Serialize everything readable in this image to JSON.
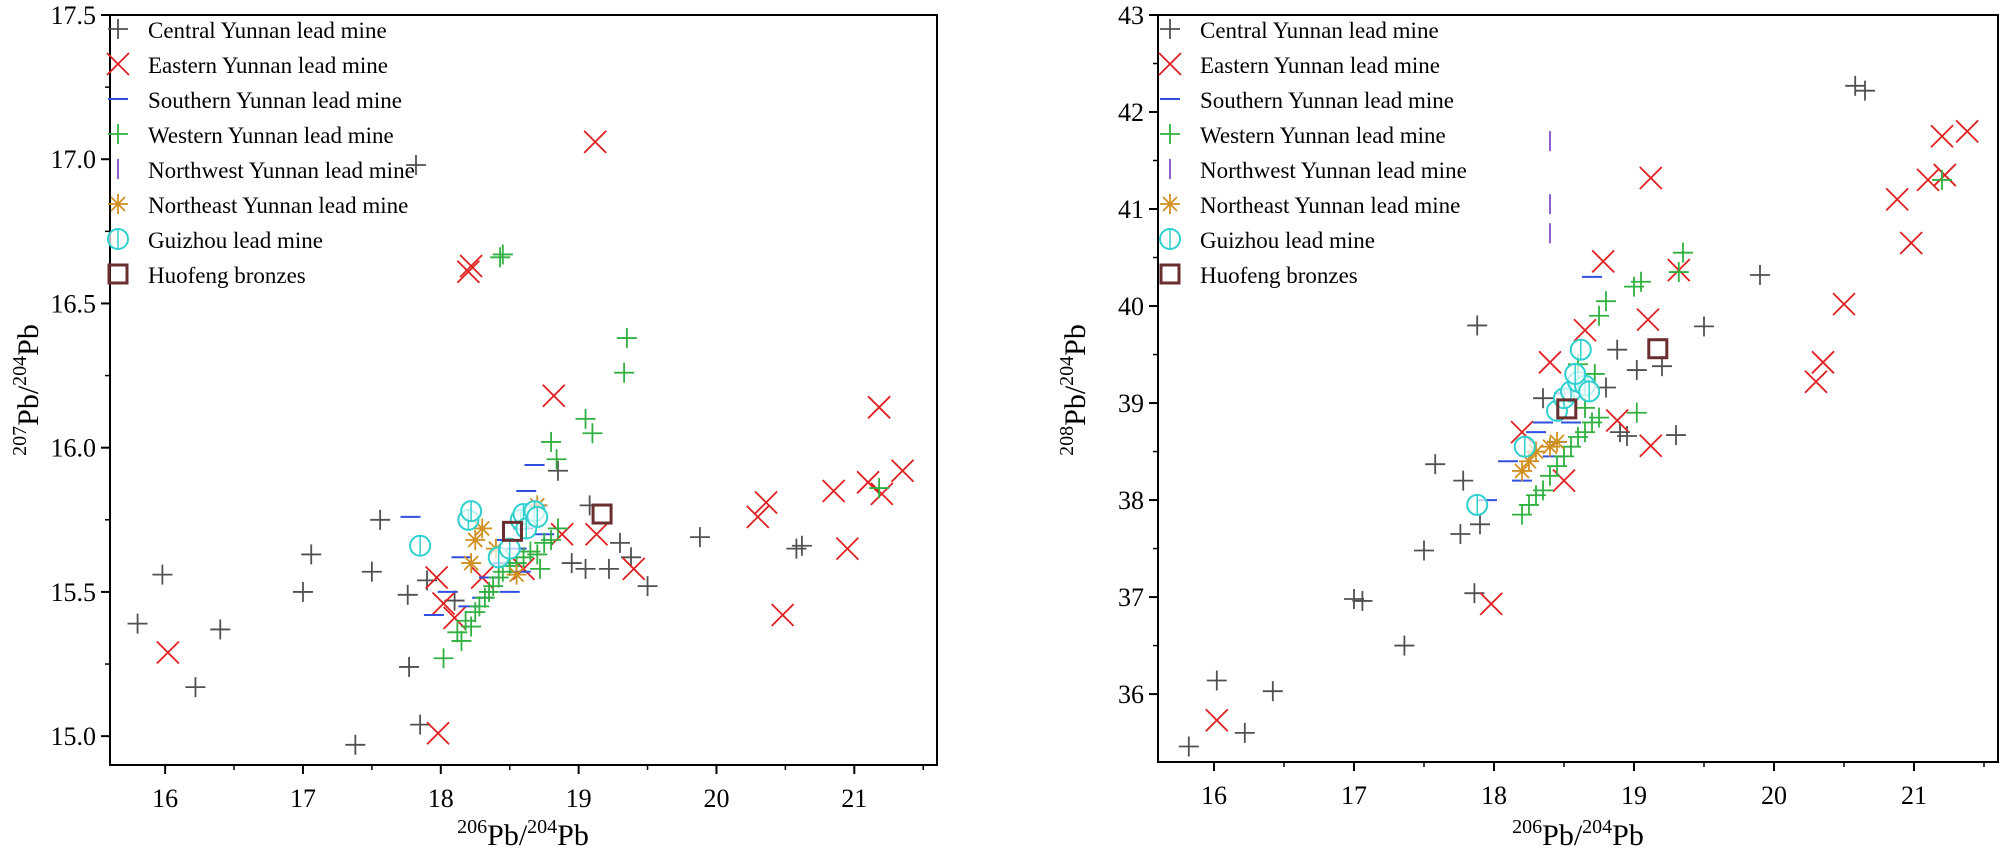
{
  "legend_colors": {
    "central": "#505050",
    "eastern": "#e02020",
    "southern": "#3050e0",
    "western": "#30b040",
    "northwest": "#9060d0",
    "northeast": "#d09020",
    "guizhou": "#30d0d0",
    "huofeng": "#6a2e2e"
  },
  "chart_data": [
    {
      "type": "scatter",
      "x_label": {
        "sup": "206",
        "base1": "Pb/",
        "sup2": "204",
        "base2": "Pb"
      },
      "y_label": {
        "sup": "207",
        "base1": "Pb/",
        "sup2": "204",
        "base2": "Pb"
      },
      "xlim": [
        15.6,
        21.6
      ],
      "ylim": [
        14.9,
        17.5
      ],
      "xticks": [
        16,
        17,
        18,
        19,
        20,
        21
      ],
      "yticks": [
        15.0,
        15.5,
        16.0,
        16.5,
        17.0,
        17.5
      ],
      "ytick_labels": [
        "15.0",
        "15.5",
        "16.0",
        "16.5",
        "17.0",
        "17.5"
      ],
      "legend_position": "top-left",
      "series": [
        {
          "key": "central",
          "name": "Central Yunnan lead mine",
          "marker": "plus",
          "color": "#505050",
          "points": [
            [
              15.8,
              15.39
            ],
            [
              15.98,
              15.56
            ],
            [
              16.22,
              15.17
            ],
            [
              16.4,
              15.37
            ],
            [
              17.0,
              15.5
            ],
            [
              17.06,
              15.63
            ],
            [
              17.5,
              15.57
            ],
            [
              17.56,
              15.75
            ],
            [
              17.38,
              14.97
            ],
            [
              17.77,
              15.24
            ],
            [
              17.76,
              15.49
            ],
            [
              17.85,
              15.04
            ],
            [
              17.82,
              16.98
            ],
            [
              17.9,
              15.54
            ],
            [
              18.1,
              15.47
            ],
            [
              18.85,
              15.92
            ],
            [
              18.95,
              15.6
            ],
            [
              19.05,
              15.58
            ],
            [
              19.08,
              15.8
            ],
            [
              19.3,
              15.67
            ],
            [
              19.38,
              15.62
            ],
            [
              19.5,
              15.52
            ],
            [
              19.88,
              15.69
            ],
            [
              20.58,
              15.65
            ],
            [
              20.62,
              15.66
            ],
            [
              19.22,
              15.58
            ]
          ]
        },
        {
          "key": "eastern",
          "name": "Eastern Yunnan lead mine",
          "marker": "x",
          "color": "#e02020",
          "points": [
            [
              16.02,
              15.29
            ],
            [
              17.98,
              15.01
            ],
            [
              17.97,
              15.55
            ],
            [
              18.02,
              15.46
            ],
            [
              18.1,
              15.41
            ],
            [
              18.22,
              16.63
            ],
            [
              18.2,
              16.61
            ],
            [
              18.3,
              15.55
            ],
            [
              18.6,
              15.58
            ],
            [
              18.82,
              16.18
            ],
            [
              18.88,
              15.7
            ],
            [
              19.12,
              17.06
            ],
            [
              19.13,
              15.7
            ],
            [
              19.4,
              15.58
            ],
            [
              20.3,
              15.76
            ],
            [
              20.36,
              15.81
            ],
            [
              20.48,
              15.42
            ],
            [
              20.85,
              15.85
            ],
            [
              20.95,
              15.65
            ],
            [
              21.1,
              15.88
            ],
            [
              21.2,
              15.84
            ],
            [
              21.18,
              16.14
            ],
            [
              21.35,
              15.92
            ]
          ]
        },
        {
          "key": "southern",
          "name": "Southern Yunnan lead mine",
          "marker": "hline",
          "color": "#3050e0",
          "points": [
            [
              17.78,
              15.76
            ],
            [
              18.05,
              15.5
            ],
            [
              18.2,
              15.45
            ],
            [
              18.35,
              15.55
            ],
            [
              18.45,
              15.6
            ],
            [
              18.5,
              15.5
            ],
            [
              18.55,
              15.65
            ],
            [
              18.6,
              15.72
            ],
            [
              18.62,
              15.85
            ],
            [
              18.68,
              15.94
            ],
            [
              18.7,
              15.8
            ],
            [
              18.75,
              15.7
            ],
            [
              18.48,
              15.68
            ],
            [
              18.58,
              15.57
            ],
            [
              18.3,
              15.48
            ],
            [
              18.15,
              15.62
            ],
            [
              17.95,
              15.42
            ]
          ]
        },
        {
          "key": "western",
          "name": "Western Yunnan lead mine",
          "marker": "plus",
          "color": "#30b040",
          "points": [
            [
              18.02,
              15.27
            ],
            [
              18.12,
              15.36
            ],
            [
              18.15,
              15.33
            ],
            [
              18.18,
              15.4
            ],
            [
              18.22,
              15.38
            ],
            [
              18.25,
              15.43
            ],
            [
              18.28,
              15.45
            ],
            [
              18.32,
              15.48
            ],
            [
              18.35,
              15.5
            ],
            [
              18.38,
              15.52
            ],
            [
              18.42,
              15.55
            ],
            [
              18.45,
              15.57
            ],
            [
              18.5,
              15.59
            ],
            [
              18.55,
              15.6
            ],
            [
              18.6,
              15.62
            ],
            [
              18.65,
              15.64
            ],
            [
              18.7,
              15.63
            ],
            [
              18.75,
              15.67
            ],
            [
              18.8,
              15.68
            ],
            [
              18.72,
              15.58
            ],
            [
              18.85,
              15.72
            ],
            [
              18.8,
              16.02
            ],
            [
              18.84,
              15.96
            ],
            [
              19.05,
              16.1
            ],
            [
              19.1,
              16.05
            ],
            [
              19.35,
              16.38
            ],
            [
              19.33,
              16.26
            ],
            [
              18.43,
              16.66
            ],
            [
              18.45,
              16.67
            ],
            [
              21.18,
              15.86
            ]
          ]
        },
        {
          "key": "northwest",
          "name": "Northwest Yunnan lead mine",
          "marker": "vline",
          "color": "#9060d0",
          "points": []
        },
        {
          "key": "northeast",
          "name": "Northeast Yunnan lead mine",
          "marker": "star",
          "color": "#d09020",
          "points": [
            [
              18.25,
              15.68
            ],
            [
              18.3,
              15.72
            ],
            [
              18.55,
              15.56
            ],
            [
              18.22,
              15.6
            ],
            [
              18.7,
              15.8
            ],
            [
              18.4,
              15.65
            ]
          ]
        },
        {
          "key": "guizhou",
          "name": "Guizhou lead mine",
          "marker": "circle",
          "color": "#30d0d0",
          "points": [
            [
              17.85,
              15.66
            ],
            [
              18.2,
              15.75
            ],
            [
              18.22,
              15.78
            ],
            [
              18.42,
              15.62
            ],
            [
              18.5,
              15.65
            ],
            [
              18.58,
              15.75
            ],
            [
              18.6,
              15.77
            ],
            [
              18.62,
              15.72
            ],
            [
              18.68,
              15.78
            ],
            [
              18.7,
              15.76
            ]
          ]
        },
        {
          "key": "huofeng",
          "name": "Huofeng bronzes",
          "marker": "square",
          "color": "#6a2e2e",
          "points": [
            [
              18.52,
              15.71
            ],
            [
              19.17,
              15.77
            ]
          ]
        }
      ]
    },
    {
      "type": "scatter",
      "x_label": {
        "sup": "206",
        "base1": "Pb/",
        "sup2": "204",
        "base2": "Pb"
      },
      "y_label": {
        "sup": "208",
        "base1": "Pb/",
        "sup2": "204",
        "base2": "Pb"
      },
      "xlim": [
        15.6,
        21.6
      ],
      "ylim": [
        35.3,
        43.0
      ],
      "xticks": [
        16,
        17,
        18,
        19,
        20,
        21
      ],
      "yticks": [
        36,
        37,
        38,
        39,
        40,
        41,
        42,
        43
      ],
      "ytick_labels": [
        "36",
        "37",
        "38",
        "39",
        "40",
        "41",
        "42",
        "43"
      ],
      "legend_position": "top-left",
      "series": [
        {
          "key": "central",
          "name": "Central Yunnan lead mine",
          "marker": "plus",
          "color": "#505050",
          "points": [
            [
              15.82,
              35.46
            ],
            [
              16.02,
              36.14
            ],
            [
              16.22,
              35.6
            ],
            [
              16.42,
              36.03
            ],
            [
              17.0,
              36.98
            ],
            [
              17.06,
              36.96
            ],
            [
              17.36,
              36.5
            ],
            [
              17.5,
              37.48
            ],
            [
              17.58,
              38.37
            ],
            [
              17.76,
              37.65
            ],
            [
              17.78,
              38.2
            ],
            [
              17.86,
              37.04
            ],
            [
              17.9,
              37.75
            ],
            [
              17.88,
              39.8
            ],
            [
              18.35,
              39.05
            ],
            [
              18.88,
              39.55
            ],
            [
              18.9,
              38.7
            ],
            [
              18.95,
              38.66
            ],
            [
              19.02,
              39.34
            ],
            [
              19.3,
              38.67
            ],
            [
              19.5,
              39.79
            ],
            [
              19.9,
              40.32
            ],
            [
              20.58,
              42.27
            ],
            [
              20.65,
              42.22
            ],
            [
              19.2,
              39.38
            ],
            [
              18.8,
              39.16
            ]
          ]
        },
        {
          "key": "eastern",
          "name": "Eastern Yunnan lead mine",
          "marker": "x",
          "color": "#e02020",
          "points": [
            [
              16.02,
              35.73
            ],
            [
              17.98,
              36.93
            ],
            [
              18.2,
              38.7
            ],
            [
              18.4,
              39.42
            ],
            [
              18.5,
              38.2
            ],
            [
              18.65,
              39.75
            ],
            [
              18.78,
              40.46
            ],
            [
              18.88,
              38.82
            ],
            [
              19.1,
              39.86
            ],
            [
              19.12,
              41.32
            ],
            [
              19.12,
              38.56
            ],
            [
              19.32,
              40.37
            ],
            [
              20.3,
              39.22
            ],
            [
              20.35,
              39.42
            ],
            [
              20.5,
              40.02
            ],
            [
              20.88,
              41.1
            ],
            [
              20.98,
              40.65
            ],
            [
              21.1,
              41.3
            ],
            [
              21.2,
              41.75
            ],
            [
              21.22,
              41.35
            ],
            [
              21.38,
              41.8
            ]
          ]
        },
        {
          "key": "southern",
          "name": "Southern Yunnan lead mine",
          "marker": "hline",
          "color": "#3050e0",
          "points": [
            [
              17.95,
              38.0
            ],
            [
              18.1,
              38.4
            ],
            [
              18.2,
              38.2
            ],
            [
              18.35,
              38.8
            ],
            [
              18.45,
              38.6
            ],
            [
              18.5,
              39.1
            ],
            [
              18.55,
              38.8
            ],
            [
              18.6,
              39.2
            ],
            [
              18.7,
              40.3
            ],
            [
              18.42,
              38.45
            ],
            [
              18.3,
              38.7
            ]
          ]
        },
        {
          "key": "western",
          "name": "Western Yunnan lead mine",
          "marker": "plus",
          "color": "#30b040",
          "points": [
            [
              18.2,
              37.85
            ],
            [
              18.25,
              37.95
            ],
            [
              18.3,
              38.05
            ],
            [
              18.35,
              38.1
            ],
            [
              18.4,
              38.25
            ],
            [
              18.45,
              38.35
            ],
            [
              18.5,
              38.45
            ],
            [
              18.55,
              38.55
            ],
            [
              18.6,
              38.65
            ],
            [
              18.65,
              38.7
            ],
            [
              18.7,
              38.8
            ],
            [
              18.75,
              38.85
            ],
            [
              18.72,
              39.3
            ],
            [
              18.75,
              39.9
            ],
            [
              18.8,
              40.05
            ],
            [
              19.0,
              40.2
            ],
            [
              19.05,
              40.25
            ],
            [
              19.02,
              38.9
            ],
            [
              19.35,
              40.55
            ],
            [
              19.32,
              40.35
            ],
            [
              18.6,
              39.4
            ],
            [
              21.2,
              41.3
            ],
            [
              18.65,
              38.95
            ]
          ]
        },
        {
          "key": "northwest",
          "name": "Northwest Yunnan lead mine",
          "marker": "vline",
          "color": "#9060d0",
          "points": [
            [
              18.4,
              41.7
            ],
            [
              18.4,
              41.05
            ],
            [
              18.4,
              40.75
            ]
          ]
        },
        {
          "key": "northeast",
          "name": "Northeast Yunnan lead mine",
          "marker": "star",
          "color": "#d09020",
          "points": [
            [
              18.2,
              38.3
            ],
            [
              18.25,
              38.4
            ],
            [
              18.3,
              38.5
            ],
            [
              18.45,
              38.6
            ],
            [
              18.4,
              38.55
            ]
          ]
        },
        {
          "key": "guizhou",
          "name": "Guizhou lead mine",
          "marker": "circle",
          "color": "#30d0d0",
          "points": [
            [
              17.88,
              37.95
            ],
            [
              18.22,
              38.55
            ],
            [
              18.45,
              38.92
            ],
            [
              18.5,
              39.05
            ],
            [
              18.55,
              39.12
            ],
            [
              18.6,
              39.22
            ],
            [
              18.62,
              39.55
            ],
            [
              18.65,
              39.18
            ],
            [
              18.68,
              39.12
            ],
            [
              18.58,
              39.3
            ]
          ]
        },
        {
          "key": "huofeng",
          "name": "Huofeng bronzes",
          "marker": "square",
          "color": "#6a2e2e",
          "points": [
            [
              18.52,
              38.94
            ],
            [
              19.17,
              39.56
            ]
          ]
        }
      ]
    }
  ]
}
